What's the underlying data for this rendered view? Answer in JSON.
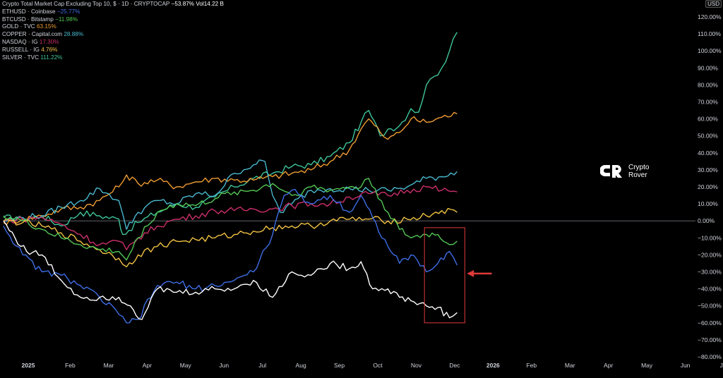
{
  "legend": [
    {
      "label": "Crypto Total Market Cap Excluding Top 10, $ · 1D · CRYPTOCAP",
      "value": "−53.87%",
      "extra": "Vol14.22 B",
      "color": "#ffffff"
    },
    {
      "label": "ETHUSD · Coinbase",
      "value": "−25.77%",
      "color": "#3d6ee6"
    },
    {
      "label": "BTCUSD · Bitstamp",
      "value": "−11.98%",
      "color": "#52c754"
    },
    {
      "label": "GOLD · TVC",
      "value": "63.15%",
      "color": "#ef9c32"
    },
    {
      "label": "COPPER · Capital.com",
      "value": "28.88%",
      "color": "#49b8cf"
    },
    {
      "label": "NASDAQ · IG",
      "value": "17.30%",
      "color": "#cc2f6a"
    },
    {
      "label": "RUSSELL · IG",
      "value": "4.76%",
      "color": "#f3c344"
    },
    {
      "label": "SILVER · TVC",
      "value": "111.22%",
      "color": "#3fc59a"
    }
  ],
  "currency_label": "USD",
  "brand": {
    "line1": "Crypto",
    "line2": "Rover"
  },
  "chart_data": {
    "type": "line",
    "y_unit": "percent change",
    "ylim": [
      -80,
      120
    ],
    "y_ticks": [
      "120.00%",
      "110.00%",
      "100.00%",
      "90.00%",
      "80.00%",
      "70.00%",
      "60.00%",
      "50.00%",
      "40.00%",
      "30.00%",
      "20.00%",
      "10.00%",
      "0.00%",
      "−10.00%",
      "−20.00%",
      "−30.00%",
      "−40.00%",
      "−50.00%",
      "−60.00%",
      "−70.00%",
      "−80.00%"
    ],
    "x_ticks": [
      "2025",
      "Feb",
      "Mar",
      "Apr",
      "May",
      "Jun",
      "Jul",
      "Aug",
      "Sep",
      "Oct",
      "Nov",
      "Dec",
      "2026",
      "Feb",
      "Mar",
      "Apr",
      "May",
      "Jun",
      "Jul"
    ],
    "x_tick_values": [
      0,
      1,
      2,
      3,
      4,
      5,
      6,
      7,
      8,
      9,
      10,
      11,
      12,
      13,
      14,
      15,
      16,
      17,
      18
    ],
    "x_unit": "months since Jan 2025",
    "zero_line": true,
    "series": [
      {
        "name": "SILVER · TVC",
        "color": "#3fc59a",
        "x": [
          0,
          0.5,
          1,
          1.5,
          2,
          2.5,
          3,
          3.1,
          3.5,
          4,
          4.5,
          5,
          5.5,
          6,
          6.5,
          7,
          7.5,
          8,
          8.5,
          9,
          9.3,
          9.5,
          9.8,
          10,
          10.3,
          10.6,
          10.8,
          11,
          11.2,
          11.4,
          11.6,
          11.8
        ],
        "y": [
          2,
          1,
          3,
          -3,
          5,
          3,
          1,
          -8,
          -1,
          5,
          10,
          8,
          14,
          20,
          25,
          28,
          32,
          33,
          38,
          46,
          58,
          65,
          50,
          54,
          56,
          66,
          64,
          80,
          85,
          90,
          100,
          111
        ]
      },
      {
        "name": "GOLD · TVC",
        "color": "#ef9c32",
        "x": [
          0,
          0.5,
          1,
          1.5,
          2,
          2.5,
          3,
          3.2,
          3.5,
          4,
          4.5,
          5,
          5.5,
          6,
          6.5,
          7,
          7.5,
          8,
          8.5,
          9,
          9.3,
          9.5,
          9.8,
          10,
          10.3,
          10.6,
          11,
          11.4,
          11.8
        ],
        "y": [
          -1,
          1,
          3,
          7,
          8,
          12,
          20,
          27,
          22,
          24,
          20,
          23,
          25,
          24,
          24,
          26,
          28,
          30,
          35,
          42,
          54,
          60,
          52,
          48,
          52,
          60,
          58,
          61,
          63
        ]
      },
      {
        "name": "COPPER · Capital.com",
        "color": "#49b8cf",
        "x": [
          0,
          0.5,
          1,
          1.5,
          2,
          2.5,
          3,
          3.2,
          3.5,
          4,
          4.5,
          5,
          5.5,
          6,
          6.5,
          6.8,
          7,
          7.2,
          7.5,
          8,
          8.5,
          9,
          9.5,
          10,
          10.5,
          11,
          11.4,
          11.8
        ],
        "y": [
          0,
          2,
          3,
          8,
          12,
          19,
          12,
          -5,
          5,
          12,
          10,
          16,
          15,
          28,
          33,
          35,
          15,
          5,
          10,
          18,
          19,
          19,
          18,
          18,
          20,
          25,
          26,
          29
        ]
      },
      {
        "name": "NASDAQ · IG",
        "color": "#cc2f6a",
        "x": [
          0,
          0.5,
          1,
          1.5,
          2,
          2.5,
          3,
          3.2,
          3.5,
          4,
          4.5,
          5,
          5.5,
          6,
          6.5,
          7,
          7.5,
          8,
          8.5,
          9,
          9.5,
          10,
          10.5,
          11,
          11.4,
          11.8
        ],
        "y": [
          0,
          1,
          2,
          -2,
          -8,
          -14,
          -12,
          -17,
          -10,
          -3,
          1,
          3,
          6,
          6,
          7,
          7,
          9,
          10,
          10,
          14,
          16,
          15,
          18,
          20,
          18,
          17
        ]
      },
      {
        "name": "RUSSELL · IG",
        "color": "#f3c344",
        "x": [
          0,
          0.5,
          1,
          1.5,
          2,
          2.5,
          3,
          3.2,
          3.5,
          4,
          4.5,
          5,
          5.5,
          6,
          6.5,
          7,
          7.5,
          8,
          8.5,
          9,
          9.5,
          10,
          10.5,
          11,
          11.4,
          11.8
        ],
        "y": [
          0,
          -1,
          -3,
          -7,
          -12,
          -17,
          -22,
          -27,
          -20,
          -15,
          -12,
          -11,
          -10,
          -8,
          -6,
          -4,
          -3,
          -3,
          0,
          1,
          1,
          0,
          1,
          3,
          6,
          5
        ]
      },
      {
        "name": "BTCUSD · Bitstamp",
        "color": "#52c754",
        "x": [
          0,
          0.5,
          1,
          1.5,
          2,
          2.5,
          3,
          3.2,
          3.5,
          4,
          4.5,
          5,
          5.5,
          6,
          6.5,
          7,
          7.5,
          8,
          8.5,
          9,
          9.3,
          9.5,
          10,
          10.3,
          10.6,
          11,
          11.3,
          11.6,
          11.8
        ],
        "y": [
          3,
          0,
          -5,
          -10,
          -14,
          -17,
          -18,
          -23,
          -10,
          5,
          10,
          9,
          13,
          17,
          18,
          22,
          15,
          20,
          18,
          20,
          20,
          25,
          5,
          -5,
          -10,
          -8,
          -8,
          -14,
          -12
        ]
      },
      {
        "name": "ETHUSD · Coinbase",
        "color": "#3d6ee6",
        "x": [
          0,
          0.5,
          1,
          1.5,
          2,
          2.5,
          3,
          3.2,
          3.5,
          4,
          4.5,
          5,
          5.5,
          6,
          6.5,
          7,
          7.3,
          7.5,
          8,
          8.5,
          9,
          9.3,
          9.6,
          10,
          10.3,
          10.6,
          11,
          11.3,
          11.6,
          11.8
        ],
        "y": [
          -3,
          -20,
          -30,
          -32,
          -38,
          -45,
          -55,
          -60,
          -58,
          -38,
          -36,
          -40,
          -38,
          -35,
          -30,
          -8,
          15,
          18,
          10,
          15,
          5,
          15,
          2,
          -15,
          -25,
          -20,
          -30,
          -25,
          -18,
          -26
        ]
      },
      {
        "name": "Crypto Total Market Cap Excluding Top 10, $ · 1D · CRYPTOCAP",
        "color": "#ffffff",
        "x": [
          0,
          0.3,
          0.6,
          1,
          1.5,
          2,
          2.5,
          3,
          3.3,
          3.6,
          4,
          4.5,
          5,
          5.5,
          6,
          6.5,
          7,
          7.5,
          8,
          8.5,
          9,
          9.3,
          9.6,
          10,
          10.3,
          10.6,
          11,
          11.3,
          11.6,
          11.8
        ],
        "y": [
          0,
          -10,
          -18,
          -20,
          -35,
          -45,
          -45,
          -45,
          -50,
          -58,
          -40,
          -42,
          -42,
          -40,
          -40,
          -35,
          -45,
          -30,
          -32,
          -25,
          -28,
          -24,
          -40,
          -40,
          -45,
          -47,
          -50,
          -51,
          -57,
          -54
        ]
      }
    ],
    "annotations": [
      {
        "type": "rectangle",
        "color": "#e03a3a"
      },
      {
        "type": "arrow",
        "color": "#e03a3a"
      }
    ]
  }
}
